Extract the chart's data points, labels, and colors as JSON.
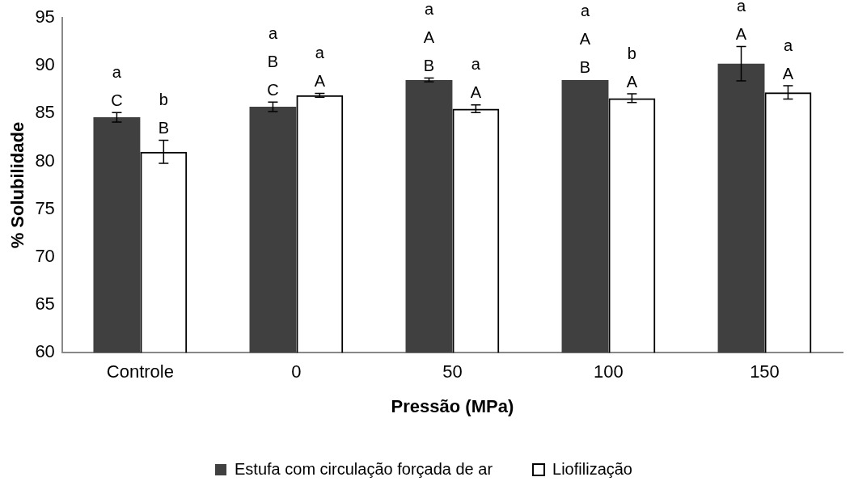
{
  "chart_data": {
    "type": "bar",
    "xlabel": "Pressão (MPa)",
    "ylabel": "% Solubilidade",
    "categories": [
      "Controle",
      "0",
      "50",
      "100",
      "150"
    ],
    "series": [
      {
        "name": "Estufa com circulação forçada de ar",
        "color": "#404040",
        "values": [
          84.6,
          85.7,
          88.5,
          88.5,
          90.2
        ],
        "errors": [
          0.5,
          0.5,
          0.2,
          null,
          1.8
        ]
      },
      {
        "name": "Liofilização",
        "color": "#000000",
        "values": [
          81.0,
          86.9,
          85.5,
          86.6,
          87.2
        ],
        "errors": [
          1.2,
          0.2,
          0.4,
          0.45,
          0.7
        ]
      }
    ],
    "ylim": [
      60,
      95
    ],
    "yticks": [
      60,
      65,
      70,
      75,
      80,
      85,
      90,
      95
    ],
    "grid": false,
    "legend": "bottom",
    "annotations": [
      "a\nC",
      "b\nB",
      "a\nB\nC",
      "a\nA",
      "a\nA\nB",
      "a\nA",
      "a\nA\nB",
      "b\nA",
      "a\nA",
      "a\nA"
    ]
  }
}
